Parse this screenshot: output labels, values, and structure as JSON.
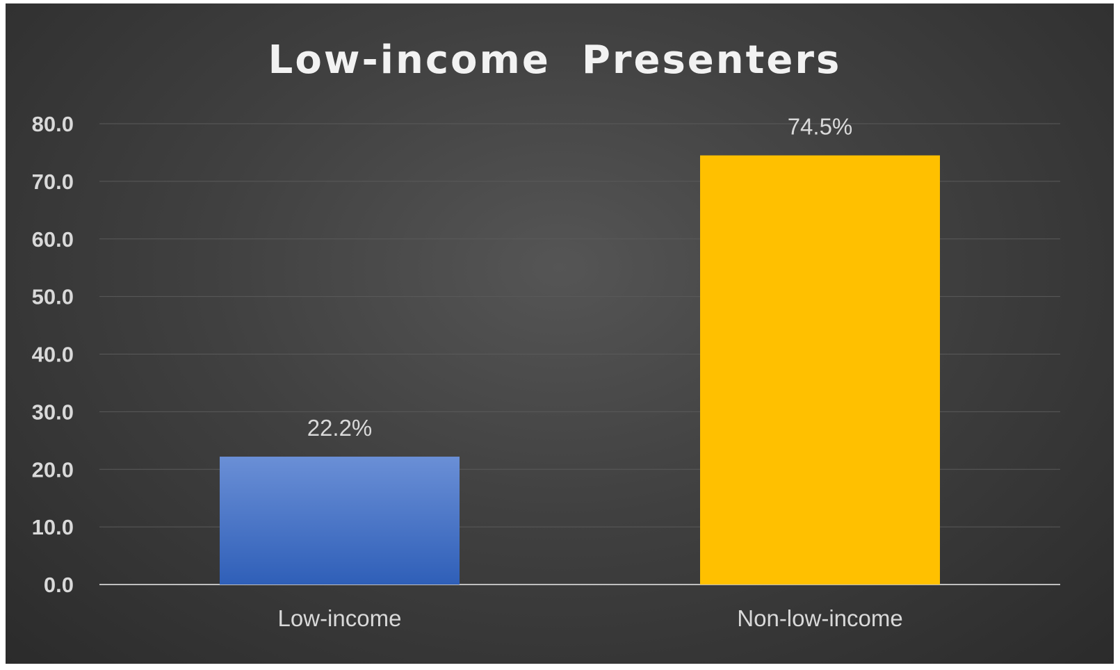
{
  "chart_data": {
    "type": "bar",
    "title": "Low-income  Presenters",
    "xlabel": "",
    "ylabel": "",
    "categories": [
      "Low-income",
      "Non-low-income"
    ],
    "values": [
      22.2,
      74.5
    ],
    "data_labels": [
      "22.2%",
      "74.5%"
    ],
    "colors": [
      "#4472c4",
      "#ffc000"
    ],
    "ylim": [
      0,
      80
    ],
    "yticks": [
      "0.0",
      "10.0",
      "20.0",
      "30.0",
      "40.0",
      "50.0",
      "60.0",
      "70.0",
      "80.0"
    ],
    "grid": true,
    "legend": "none"
  }
}
